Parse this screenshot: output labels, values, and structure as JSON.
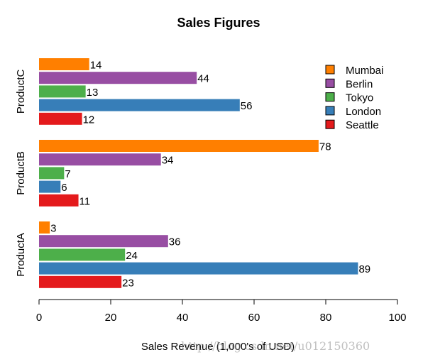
{
  "chart_data": {
    "type": "bar",
    "orientation": "horizontal",
    "title": "Sales Figures",
    "xlabel": "Sales Revenue (1,000's of USD)",
    "ylabel": "",
    "xlim": [
      0,
      100
    ],
    "xticks": [
      0,
      20,
      40,
      60,
      80,
      100
    ],
    "categories": [
      "ProductA",
      "ProductB",
      "ProductC"
    ],
    "series": [
      {
        "name": "Seattle",
        "color": "#e41a1c",
        "values": [
          23,
          11,
          12
        ]
      },
      {
        "name": "London",
        "color": "#377eb8",
        "values": [
          89,
          6,
          56
        ]
      },
      {
        "name": "Tokyo",
        "color": "#4daf4a",
        "values": [
          24,
          7,
          13
        ]
      },
      {
        "name": "Berlin",
        "color": "#984ea3",
        "values": [
          36,
          34,
          44
        ]
      },
      {
        "name": "Mumbai",
        "color": "#ff7f00",
        "values": [
          3,
          78,
          14
        ]
      }
    ],
    "legend_position": "top-right",
    "grid": false
  },
  "watermark": "http://blog.csdn.net/u012150360"
}
